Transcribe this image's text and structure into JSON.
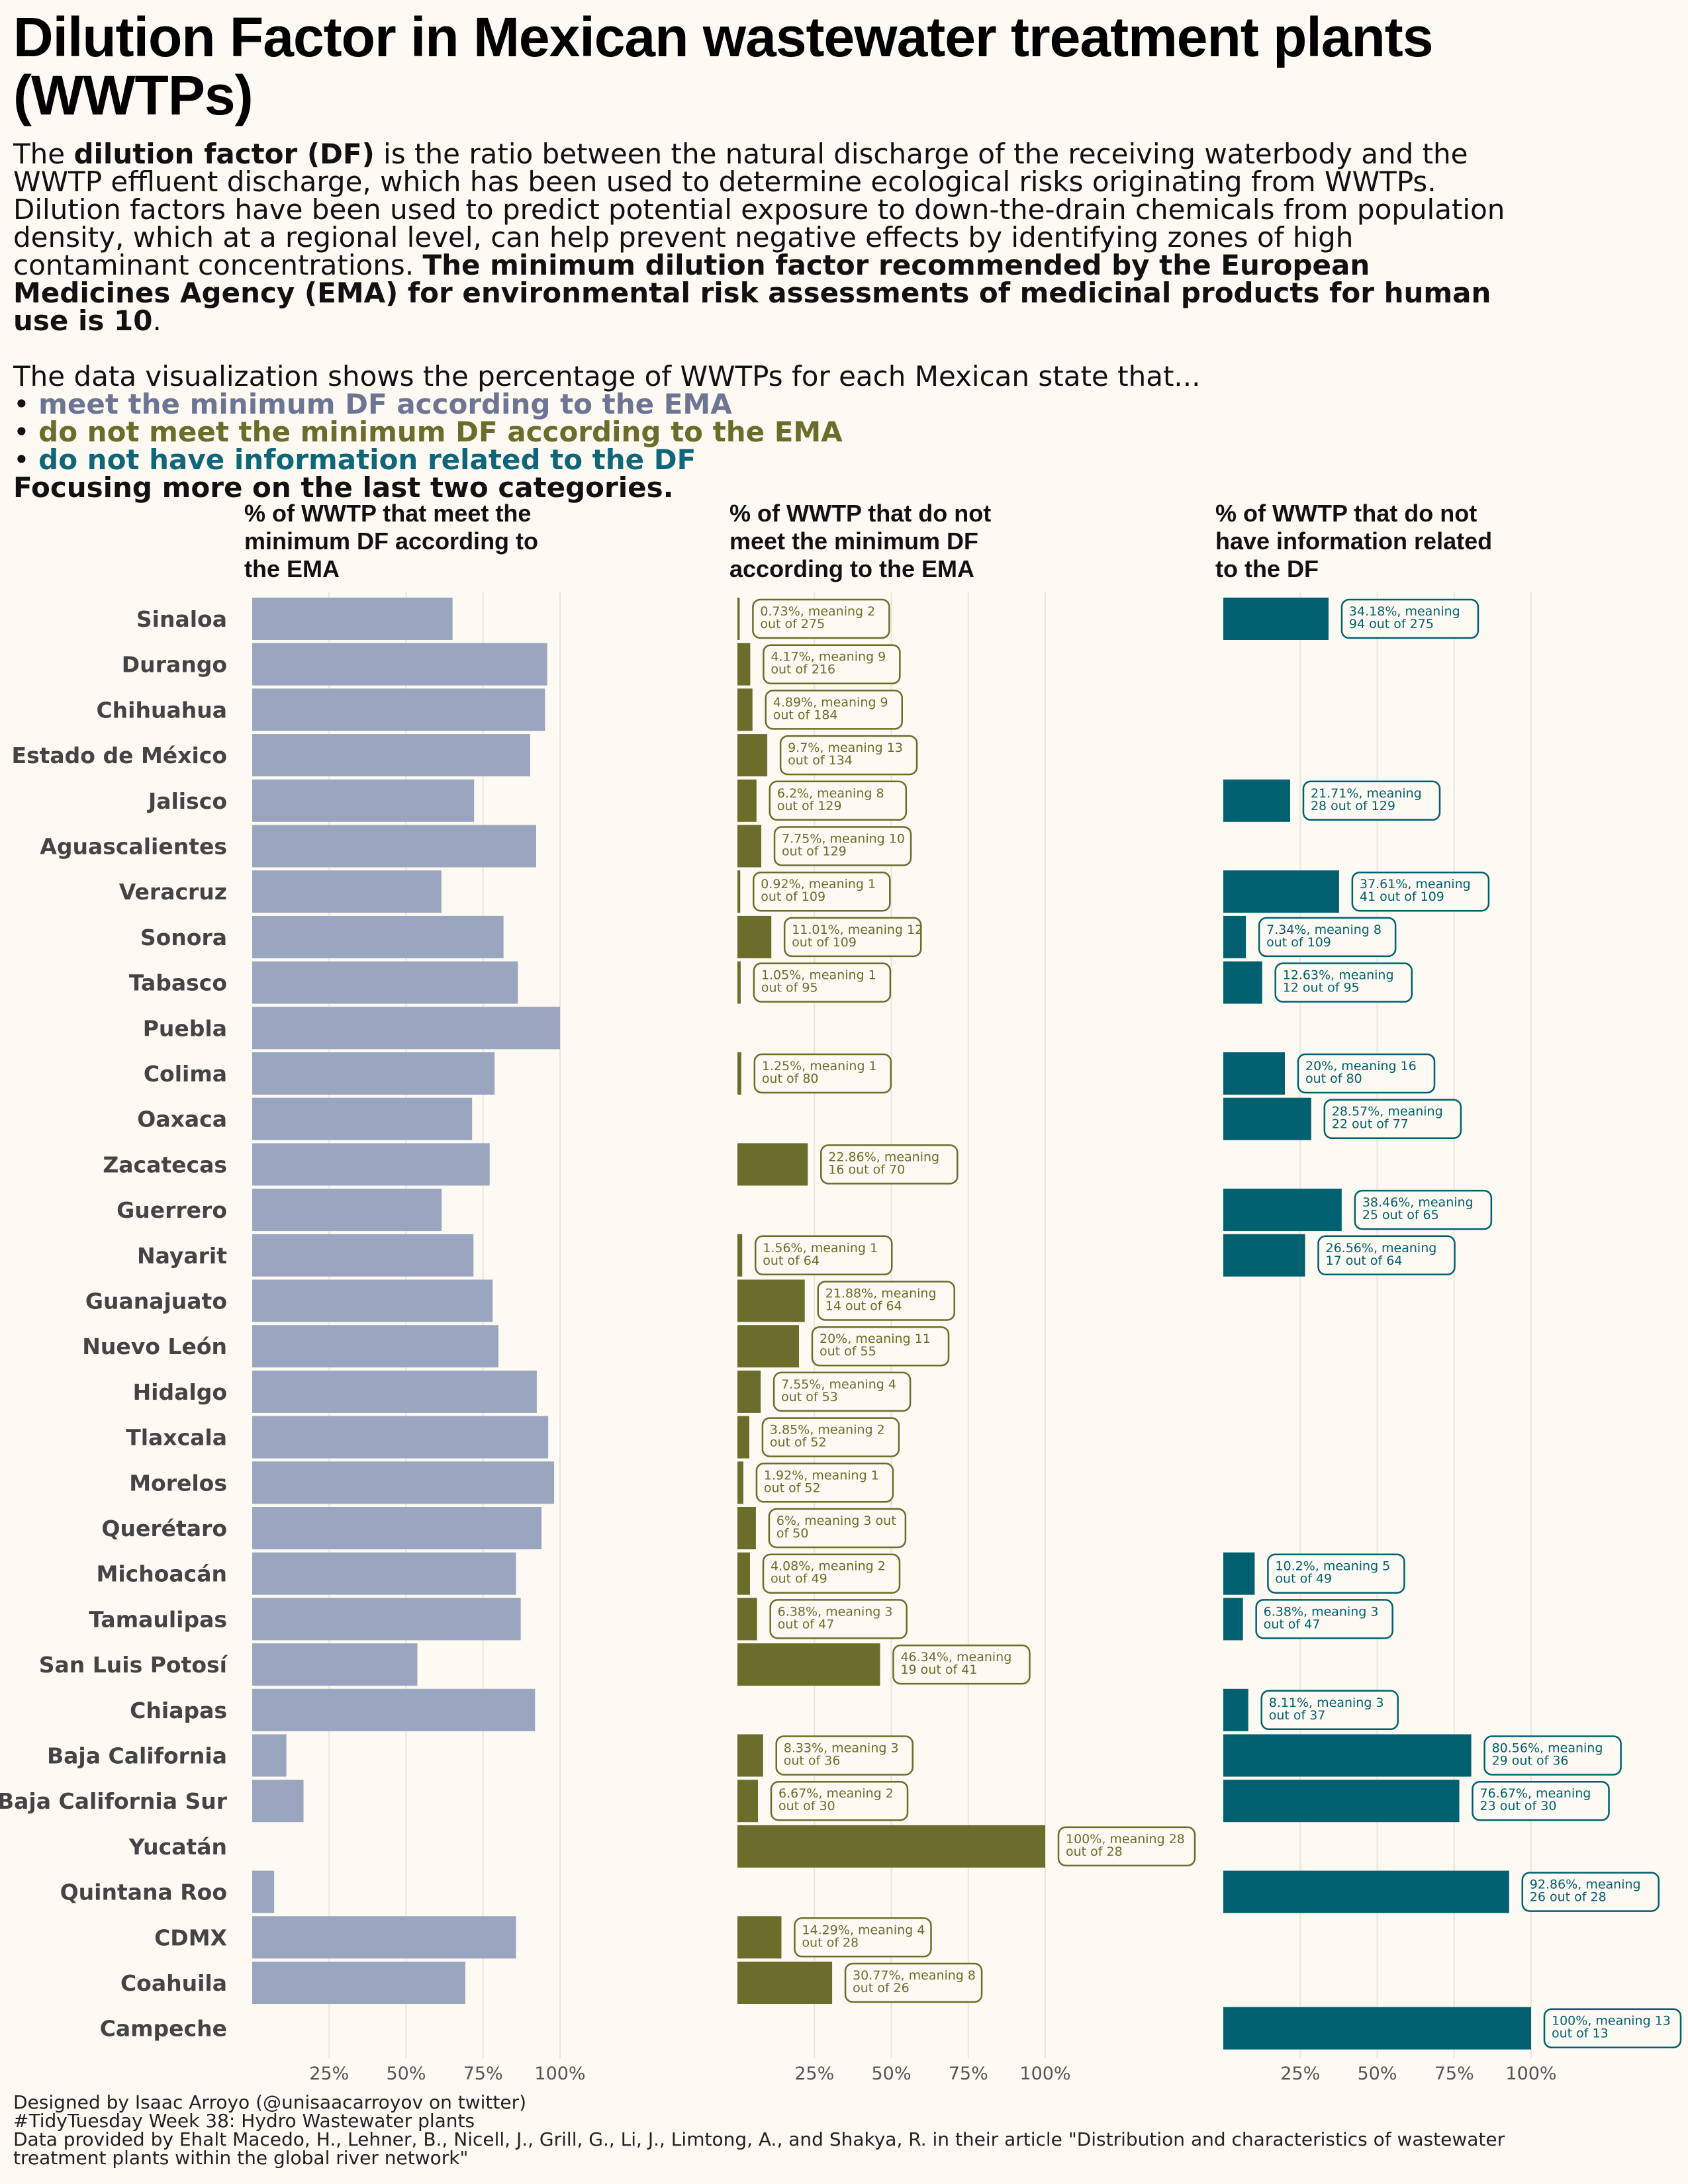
{
  "header": {
    "title": "Dilution Factor in Mexican wastewater treatment plants (WWTPs)",
    "intro": {
      "p1_a": "The ",
      "p1_bold1": "dilution factor (DF)",
      "p1_b": " is the ratio between the natural discharge of the receiving waterbody and the WWTP effluent discharge, which has been used to determine ecological risks originating from WWTPs. Dilution factors have been used to predict potential exposure to down-the-drain chemicals from population density, which at a regional level, can help prevent negative effects by identifying zones of high contaminant concentrations. ",
      "p1_bold2": "The minimum dilution factor recommended by the European Medicines Agency (EMA) for environmental risk assessments of medicinal products for human use is 10",
      "p1_c": ".",
      "p2": "The data visualization shows the percentage of WWTPs for each Mexican state that...",
      "bullet_meet": "meet the minimum DF according to the EMA",
      "bullet_notmeet": "do not meet the minimum DF according to the EMA",
      "bullet_noinfo": "do not have information related to the DF",
      "focus": "Focusing more on the last two categories."
    }
  },
  "colors": {
    "meet": "#9aa5bf",
    "notmeet": "#6b6d2b",
    "noinfo": "#00606f",
    "grid": "#e9e6dc",
    "background": "#fcfaf2"
  },
  "chart_data": [
    {
      "type": "bar",
      "orientation": "horizontal",
      "title": "% of WWTP that meet the minimum DF according to the EMA",
      "title_lines": [
        "% of WWTP that meet the",
        "minimum DF according to",
        "the EMA"
      ],
      "categories": [
        "Sinaloa",
        "Durango",
        "Chihuahua",
        "Estado de México",
        "Jalisco",
        "Aguascalientes",
        "Veracruz",
        "Sonora",
        "Tabasco",
        "Puebla",
        "Colima",
        "Oaxaca",
        "Zacatecas",
        "Guerrero",
        "Nayarit",
        "Guanajuato",
        "Nuevo León",
        "Hidalgo",
        "Tlaxcala",
        "Morelos",
        "Querétaro",
        "Michoacán",
        "Tamaulipas",
        "San Luis Potosí",
        "Chiapas",
        "Baja California",
        "Baja California Sur",
        "Yucatán",
        "Quintana Roo",
        "CDMX",
        "Coahuila",
        "Campeche"
      ],
      "values": [
        65.09,
        95.83,
        95.11,
        90.3,
        72.09,
        92.25,
        61.47,
        81.65,
        86.32,
        100,
        78.75,
        71.43,
        77.14,
        61.54,
        71.88,
        78.12,
        80,
        92.45,
        96.15,
        98.08,
        94,
        85.71,
        87.23,
        53.66,
        91.89,
        11.11,
        16.67,
        0,
        7.14,
        85.71,
        69.23,
        0
      ],
      "xlim": [
        0,
        100
      ],
      "xticks": [
        "25%",
        "50%",
        "75%",
        "100%"
      ]
    },
    {
      "type": "bar",
      "orientation": "horizontal",
      "title": "% of WWTP that do not meet the minimum DF according to the EMA",
      "title_lines": [
        "% of WWTP that do not",
        "meet the minimum DF",
        "according to the EMA"
      ],
      "categories": [
        "Sinaloa",
        "Durango",
        "Chihuahua",
        "Estado de México",
        "Jalisco",
        "Aguascalientes",
        "Veracruz",
        "Sonora",
        "Tabasco",
        "Puebla",
        "Colima",
        "Oaxaca",
        "Zacatecas",
        "Guerrero",
        "Nayarit",
        "Guanajuato",
        "Nuevo León",
        "Hidalgo",
        "Tlaxcala",
        "Morelos",
        "Querétaro",
        "Michoacán",
        "Tamaulipas",
        "San Luis Potosí",
        "Chiapas",
        "Baja California",
        "Baja California Sur",
        "Yucatán",
        "Quintana Roo",
        "CDMX",
        "Coahuila",
        "Campeche"
      ],
      "values": [
        0.73,
        4.17,
        4.89,
        9.7,
        6.2,
        7.75,
        0.92,
        11.01,
        1.05,
        0,
        1.25,
        0,
        22.86,
        0,
        1.56,
        21.88,
        20,
        7.55,
        3.85,
        1.92,
        6,
        4.08,
        6.38,
        46.34,
        0,
        8.33,
        6.67,
        100,
        0,
        14.29,
        30.77,
        0
      ],
      "labels": [
        [
          "0.73%, meaning 2",
          "out of 275"
        ],
        [
          "4.17%, meaning 9",
          "out of 216"
        ],
        [
          "4.89%, meaning 9",
          "out of 184"
        ],
        [
          "9.7%, meaning 13",
          "out of 134"
        ],
        [
          "6.2%, meaning 8",
          "out of 129"
        ],
        [
          "7.75%, meaning 10",
          "out of 129"
        ],
        [
          "0.92%, meaning 1",
          "out of 109"
        ],
        [
          "11.01%, meaning 12",
          "out of 109"
        ],
        [
          "1.05%, meaning 1",
          "out of 95"
        ],
        null,
        [
          "1.25%, meaning 1",
          "out of 80"
        ],
        null,
        [
          "22.86%, meaning",
          "16 out of 70"
        ],
        null,
        [
          "1.56%, meaning 1",
          "out of 64"
        ],
        [
          "21.88%, meaning",
          "14 out of 64"
        ],
        [
          "20%, meaning 11",
          "out of 55"
        ],
        [
          "7.55%, meaning 4",
          "out of 53"
        ],
        [
          "3.85%, meaning 2",
          "out of 52"
        ],
        [
          "1.92%, meaning 1",
          "out of 52"
        ],
        [
          "6%, meaning 3 out",
          "of 50"
        ],
        [
          "4.08%, meaning 2",
          "out of 49"
        ],
        [
          "6.38%, meaning 3",
          "out of 47"
        ],
        [
          "46.34%, meaning",
          "19 out of 41"
        ],
        null,
        [
          "8.33%, meaning 3",
          "out of 36"
        ],
        [
          "6.67%, meaning 2",
          "out of 30"
        ],
        [
          "100%, meaning 28",
          "out of 28"
        ],
        null,
        [
          "14.29%, meaning 4",
          "out of 28"
        ],
        [
          "30.77%, meaning 8",
          "out of 26"
        ],
        null
      ],
      "xlim": [
        0,
        100
      ],
      "xticks": [
        "25%",
        "50%",
        "75%",
        "100%"
      ]
    },
    {
      "type": "bar",
      "orientation": "horizontal",
      "title": "% of WWTP that do not have information related to the DF",
      "title_lines": [
        "% of WWTP that do not",
        "have information related",
        "to the DF"
      ],
      "categories": [
        "Sinaloa",
        "Durango",
        "Chihuahua",
        "Estado de México",
        "Jalisco",
        "Aguascalientes",
        "Veracruz",
        "Sonora",
        "Tabasco",
        "Puebla",
        "Colima",
        "Oaxaca",
        "Zacatecas",
        "Guerrero",
        "Nayarit",
        "Guanajuato",
        "Nuevo León",
        "Hidalgo",
        "Tlaxcala",
        "Morelos",
        "Querétaro",
        "Michoacán",
        "Tamaulipas",
        "San Luis Potosí",
        "Chiapas",
        "Baja California",
        "Baja California Sur",
        "Yucatán",
        "Quintana Roo",
        "CDMX",
        "Coahuila",
        "Campeche"
      ],
      "values": [
        34.18,
        0,
        0,
        0,
        21.71,
        0,
        37.61,
        7.34,
        12.63,
        0,
        20,
        28.57,
        0,
        38.46,
        26.56,
        0,
        0,
        0,
        0,
        0,
        0,
        10.2,
        6.38,
        0,
        8.11,
        80.56,
        76.67,
        0,
        92.86,
        0,
        0,
        100
      ],
      "labels": [
        [
          "34.18%, meaning",
          "94 out of 275"
        ],
        null,
        null,
        null,
        [
          "21.71%, meaning",
          "28 out of 129"
        ],
        null,
        [
          "37.61%, meaning",
          "41 out of 109"
        ],
        [
          "7.34%, meaning 8",
          "out of 109"
        ],
        [
          "12.63%, meaning",
          "12 out of 95"
        ],
        null,
        [
          "20%, meaning 16",
          "out of 80"
        ],
        [
          "28.57%, meaning",
          "22 out of 77"
        ],
        null,
        [
          "38.46%, meaning",
          "25 out of 65"
        ],
        [
          "26.56%, meaning",
          "17 out of 64"
        ],
        null,
        null,
        null,
        null,
        null,
        null,
        [
          "10.2%, meaning 5",
          "out of 49"
        ],
        [
          "6.38%, meaning 3",
          "out of 47"
        ],
        null,
        [
          "8.11%, meaning 3",
          "out of 37"
        ],
        [
          "80.56%, meaning",
          "29 out of 36"
        ],
        [
          "76.67%, meaning",
          "23 out of 30"
        ],
        null,
        [
          "92.86%, meaning",
          "26 out of 28"
        ],
        null,
        null,
        [
          "100%, meaning 13",
          "out of 13"
        ]
      ],
      "xlim": [
        0,
        100
      ],
      "xticks": [
        "25%",
        "50%",
        "75%",
        "100%"
      ]
    }
  ],
  "footer": {
    "line1": "Designed by Isaac Arroyo (@unisaacarroyov on twitter)",
    "line2": "#TidyTuesday Week 38: Hydro Wastewater plants",
    "line3": "Data provided by Ehalt Macedo, H., Lehner, B., Nicell, J., Grill, G., Li, J., Limtong, A., and Shakya, R. in their article \"Distribution and characteristics of wastewater",
    "line4": "treatment plants within the global river network\""
  }
}
